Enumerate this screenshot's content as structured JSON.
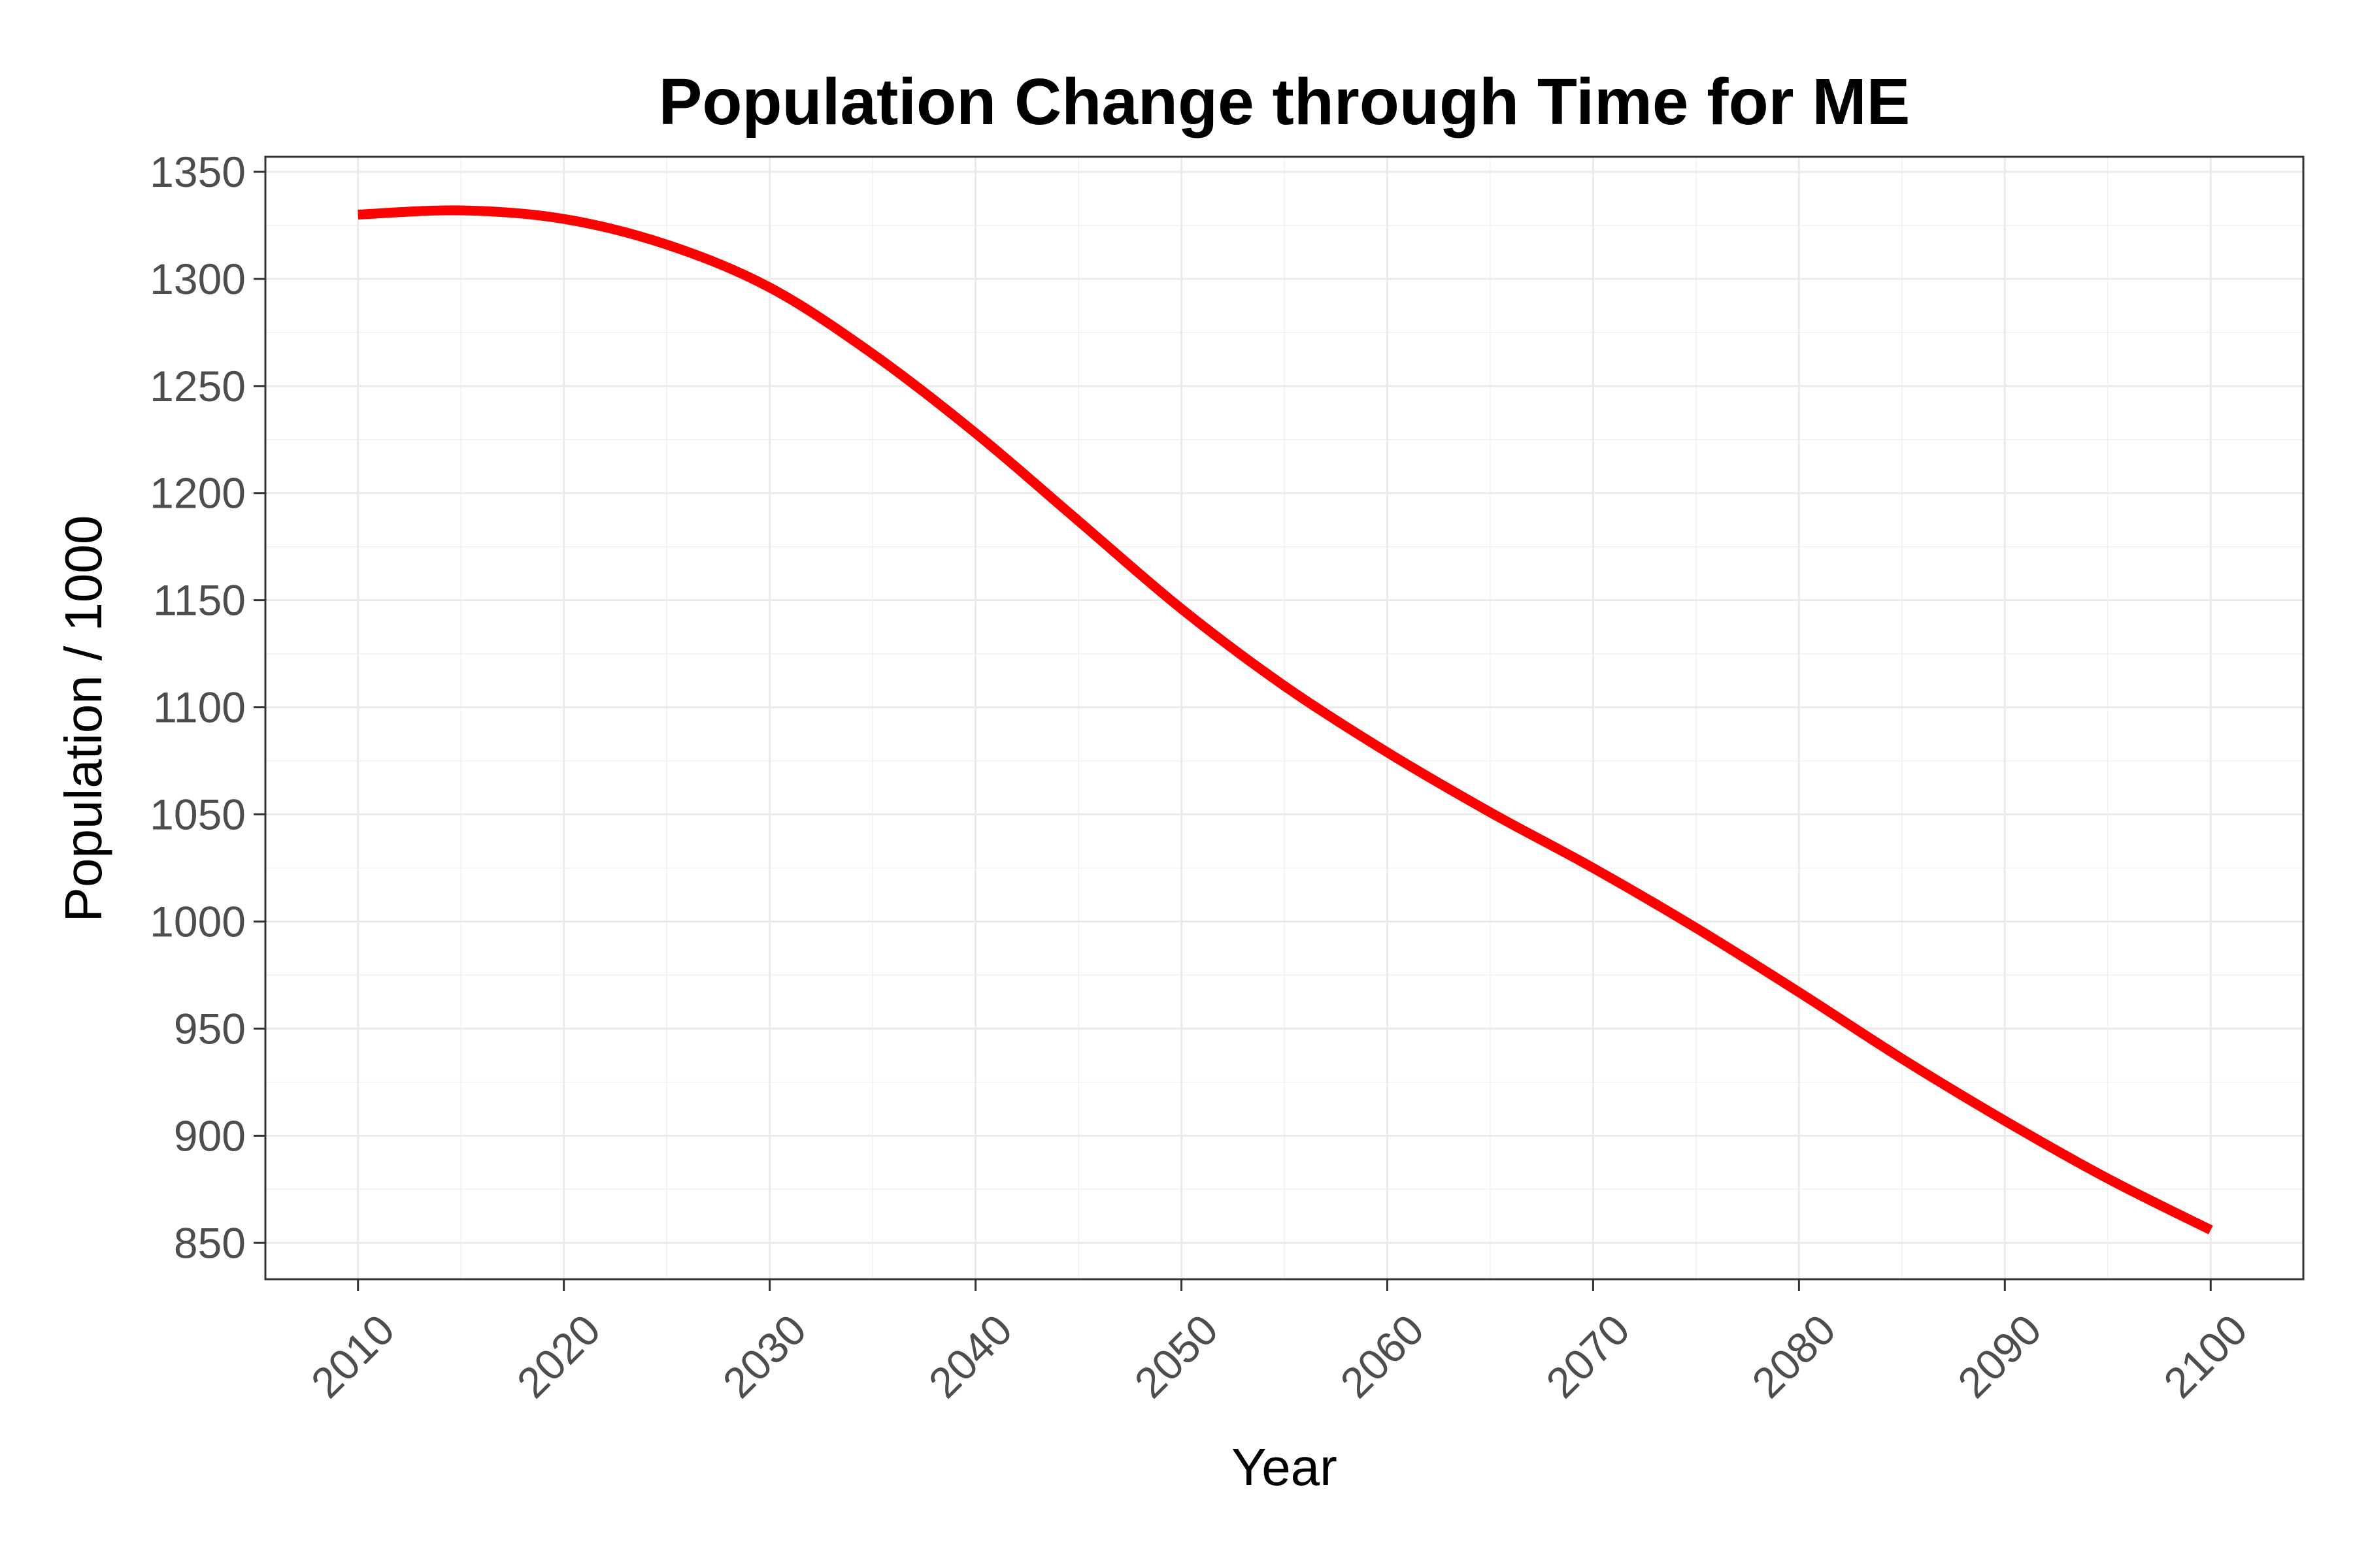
{
  "chart_data": {
    "type": "line",
    "title": "Population Change through Time for ME",
    "xlabel": "Year",
    "ylabel": "Population / 1000",
    "xlim": [
      2005.5,
      2104.5
    ],
    "ylim": [
      833,
      1357
    ],
    "x_ticks": [
      2010,
      2020,
      2030,
      2040,
      2050,
      2060,
      2070,
      2080,
      2090,
      2100
    ],
    "y_ticks": [
      850,
      900,
      950,
      1000,
      1050,
      1100,
      1150,
      1200,
      1250,
      1300,
      1350
    ],
    "grid": true,
    "legend": "none",
    "series": [
      {
        "color": "#ff0000",
        "x": [
          2010,
          2015,
          2020,
          2025,
          2030,
          2035,
          2040,
          2045,
          2050,
          2055,
          2060,
          2065,
          2070,
          2075,
          2080,
          2085,
          2090,
          2095,
          2100
        ],
        "y": [
          1330,
          1332,
          1328,
          1316,
          1296,
          1265,
          1228,
          1187,
          1146,
          1110,
          1079,
          1051,
          1025,
          997,
          967,
          936,
          907,
          880,
          856
        ]
      }
    ]
  }
}
